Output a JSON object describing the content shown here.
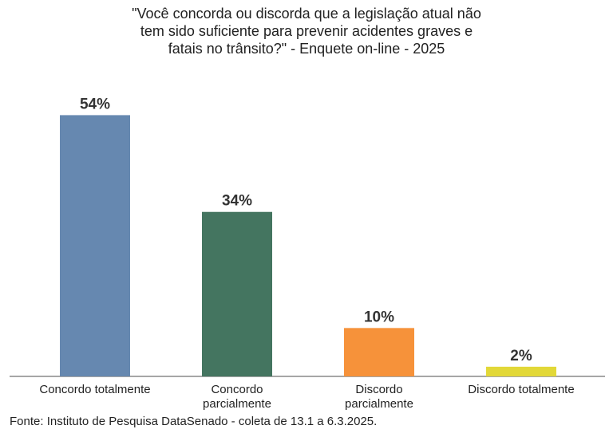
{
  "chart_data": {
    "type": "bar",
    "title": "\"Você concorda ou discorda que a legislação atual não\ntem sido suficiente para prevenir acidentes graves e\nfatais no trânsito?\" - Enquete on-line - 2025",
    "categories": [
      "Concordo totalmente",
      "Concordo\nparcialmente",
      "Discordo\nparcialmente",
      "Discordo totalmente"
    ],
    "values": [
      54,
      34,
      10,
      2
    ],
    "value_labels": [
      "54%",
      "34%",
      "10%",
      "2%"
    ],
    "colors": [
      "#6688b0",
      "#447560",
      "#f6923a",
      "#e2d838"
    ],
    "ylim": [
      0,
      60
    ],
    "source": "Fonte: Instituto de Pesquisa DataSenado - coleta de 13.1 a 6.3.2025."
  }
}
